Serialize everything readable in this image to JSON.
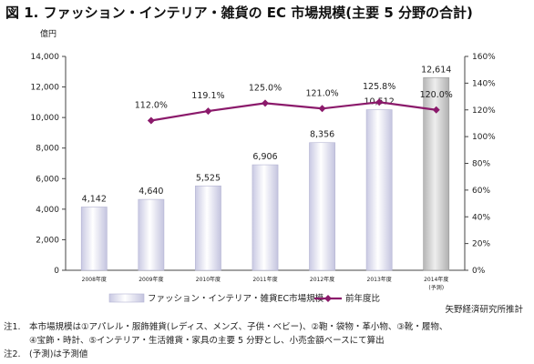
{
  "page": {
    "title": "図 1. ファッション・インテリア・雑貨の EC 市場規模(主要 5 分野の合計)",
    "unit_label": "億円",
    "source": "矢野経済研究所推計"
  },
  "notes": [
    {
      "label": "注1.",
      "lines": [
        "本市場規模は①アパレル・服飾雑貨(レディス、メンズ、子供・ベビー)、②鞄・袋物・革小物、③靴・履物、",
        "④宝飾・時計、⑤インテリア・生活雑貨・家具の主要 5 分野とし、小売金額ベースにて算出"
      ]
    },
    {
      "label": "注2.",
      "lines": [
        "(予測)は予測値"
      ]
    }
  ],
  "chart_data": {
    "type": "bar",
    "categories": [
      "2008年度",
      "2009年度",
      "2010年度",
      "2011年度",
      "2012年度",
      "2013年度",
      "2014年度"
    ],
    "category_sublabels": [
      "",
      "",
      "",
      "",
      "",
      "",
      "(予測)"
    ],
    "series": [
      {
        "name": "ファッション・インテリア・雑貨EC市場規模",
        "kind": "bar",
        "axis": "left",
        "values": [
          4142,
          4640,
          5525,
          6906,
          8356,
          10512,
          12614
        ],
        "labels": [
          "4,142",
          "4,640",
          "5,525",
          "6,906",
          "8,356",
          "10,512",
          "12,614"
        ],
        "color": "#d9d9ee"
      },
      {
        "name": "前年度比",
        "kind": "line",
        "axis": "right",
        "values": [
          null,
          112.0,
          119.1,
          125.0,
          121.0,
          125.8,
          120.0
        ],
        "labels": [
          "",
          "112.0%",
          "119.1%",
          "125.0%",
          "121.0%",
          "125.8%",
          "120.0%"
        ],
        "color": "#8b1a6b"
      }
    ],
    "y_left": {
      "min": 0,
      "max": 14000,
      "ticks": [
        "0",
        "2,000",
        "4,000",
        "6,000",
        "8,000",
        "10,000",
        "12,000",
        "14,000"
      ]
    },
    "y_right": {
      "min": 0,
      "max": 160,
      "ticks": [
        "0%",
        "20%",
        "40%",
        "60%",
        "80%",
        "100%",
        "120%",
        "140%",
        "160%"
      ]
    },
    "grid": false,
    "legend_position": "bottom"
  }
}
